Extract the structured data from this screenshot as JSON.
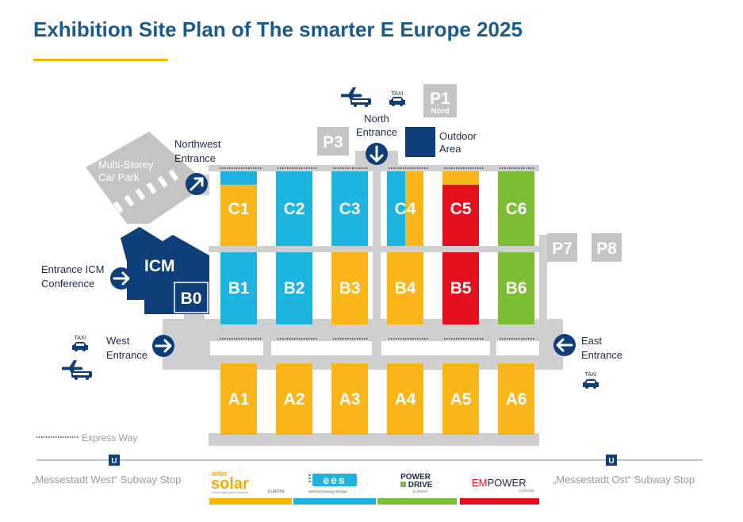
{
  "title": "Exhibition Site Plan of The smarter E Europe 2025",
  "colors": {
    "title": "#1a5b8e",
    "accent_line": "#f5b800",
    "navy": "#0f3f7a",
    "blue": "#1fb3e0",
    "yellow": "#f9b51a",
    "red": "#e3101f",
    "green": "#7cbd36",
    "gray_path": "#cfcfcf",
    "gray_parking": "#c4c4c4"
  },
  "entrances": {
    "north": [
      "North",
      "Entrance"
    ],
    "northwest": [
      "Northwest",
      "Entrance"
    ],
    "west": [
      "West",
      "Entrance"
    ],
    "east": [
      "East",
      "Entrance"
    ],
    "icm": [
      "Entrance ICM",
      "Conference"
    ]
  },
  "outdoor_area": [
    "Outdoor",
    "Area"
  ],
  "car_park": [
    "Multi-Storey",
    "Car Park"
  ],
  "icm_label": "ICM",
  "parking": {
    "p1": "P1",
    "p1_sub": "Nord",
    "p3": "P3",
    "p7": "P7",
    "p8": "P8"
  },
  "taxi_label": "TAXI",
  "halls": {
    "b0": "B0",
    "row_c": [
      "C1",
      "C2",
      "C3",
      "C4",
      "C5",
      "C6"
    ],
    "row_b": [
      "B1",
      "B2",
      "B3",
      "B4",
      "B5",
      "B6"
    ],
    "row_a": [
      "A1",
      "A2",
      "A3",
      "A4",
      "A5",
      "A6"
    ]
  },
  "legend": {
    "express_way": "Express Way"
  },
  "subway": {
    "symbol": "U",
    "west_stop": "„Messestadt West“ Subway Stop",
    "east_stop": "„Messestadt Ost“ Subway Stop"
  },
  "logos": {
    "intersolar_top": "inter",
    "intersolar_main": "solar",
    "intersolar_region": "EUROPE",
    "intersolar_tagline": "connecting solar business",
    "ees_main": "ees",
    "ees_tagline": "electrical energy storage",
    "powerdrive_top": "POWER",
    "powerdrive_bottom": "DRIVE",
    "powerdrive_region": "EUROPE",
    "empower_em": "EM",
    "empower_power": "POWER",
    "empower_region": "EUROPE"
  },
  "icons": {
    "plane": "plane-icon",
    "bus": "bus-icon",
    "taxi": "taxi-icon",
    "arrow_right": "arrow-right-icon",
    "arrow_down": "arrow-down-icon",
    "arrow_left": "arrow-left-icon",
    "arrow_northeast": "arrow-northeast-icon"
  }
}
